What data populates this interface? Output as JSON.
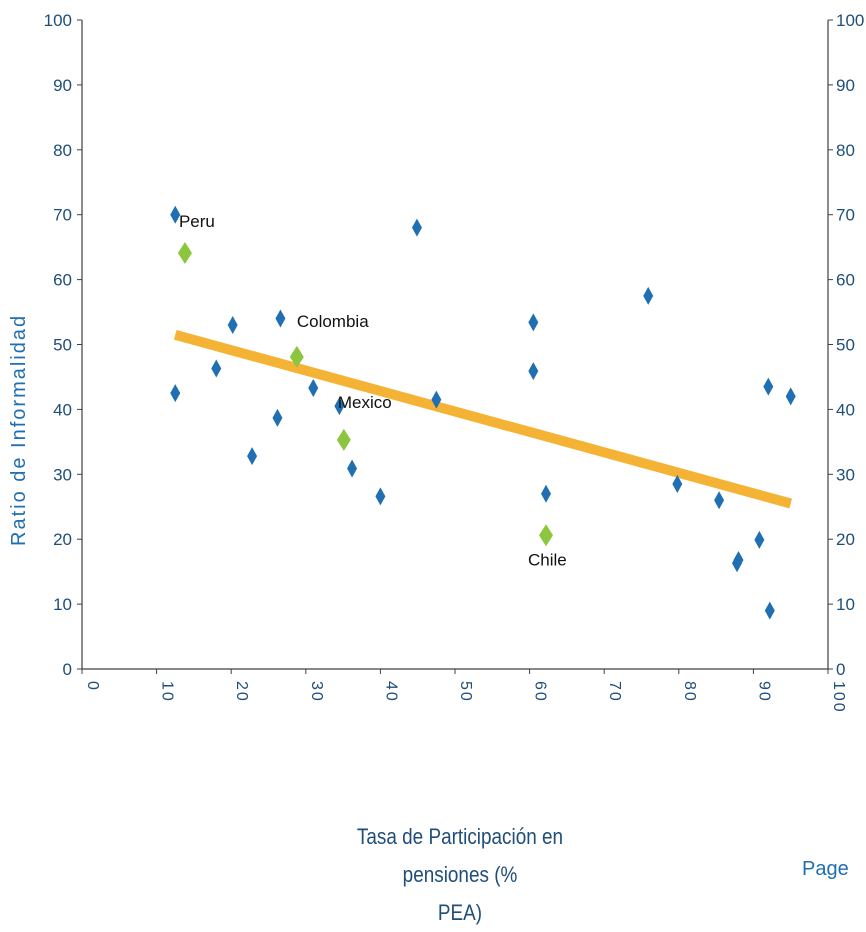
{
  "chart_data": {
    "type": "scatter",
    "ylabel": "Ratio de Informalidad",
    "xlabel": "Tasa de Participación en pensiones (% PEA)",
    "xlim": [
      0,
      100
    ],
    "ylim": [
      0,
      100
    ],
    "xticks": [
      0,
      10,
      20,
      30,
      40,
      50,
      60,
      70,
      80,
      90,
      100
    ],
    "yticks": [
      0,
      10,
      20,
      30,
      40,
      50,
      60,
      70,
      80,
      90,
      100
    ],
    "grid": false,
    "secondary_y_axis": true,
    "series": [
      {
        "color": "#1f6fb2",
        "marker": "diamond",
        "points": [
          [
            12.5,
            70
          ],
          [
            12.5,
            42.5
          ],
          [
            18,
            46.3
          ],
          [
            20.2,
            53
          ],
          [
            22.8,
            32.8
          ],
          [
            26.2,
            38.7
          ],
          [
            26.6,
            54
          ],
          [
            31,
            43.3
          ],
          [
            34.5,
            40.5
          ],
          [
            36.2,
            30.9
          ],
          [
            40,
            26.6
          ],
          [
            44.9,
            68
          ],
          [
            47.5,
            41.5
          ],
          [
            60.5,
            53.4
          ],
          [
            60.5,
            45.9
          ],
          [
            62.2,
            27
          ],
          [
            75.9,
            57.5
          ],
          [
            79.8,
            28.5
          ],
          [
            85.4,
            26
          ],
          [
            87.8,
            16.3
          ],
          [
            88,
            16.8
          ],
          [
            90.8,
            19.9
          ],
          [
            92,
            43.5
          ],
          [
            92.2,
            9
          ],
          [
            95,
            42
          ]
        ]
      },
      {
        "color": "#8cc63f",
        "marker": "diamond",
        "points": [
          {
            "x": 13.8,
            "y": 64.1,
            "label": "Peru"
          },
          {
            "x": 28.8,
            "y": 48.1,
            "label": "Colombia"
          },
          {
            "x": 35.1,
            "y": 35.3,
            "label": "Mexico"
          },
          {
            "x": 62.2,
            "y": 20.6,
            "label": "Chile"
          }
        ]
      }
    ],
    "trendline": {
      "color": "#f5b335",
      "from": [
        12.5,
        51.5
      ],
      "to": [
        95,
        25.5
      ]
    }
  },
  "labels": {
    "ylabel": "Ratio de Informalidad",
    "xlabel_line1": "Tasa de Participación en pensiones (%",
    "xlabel_line2": "PEA)",
    "page": "Page"
  }
}
